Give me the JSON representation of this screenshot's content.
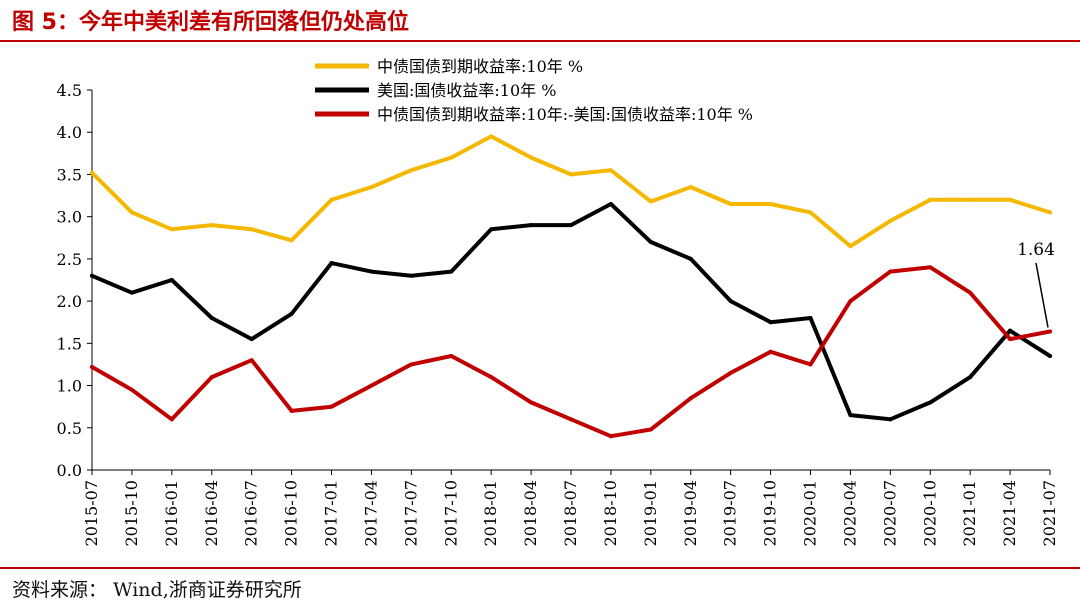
{
  "figure": {
    "title": "图 5：今年中美利差有所回落但仍处高位",
    "source": "资料来源：  Wind,浙商证券研究所"
  },
  "colors": {
    "cn": "#f5b800",
    "us": "#000000",
    "spread": "#c00000",
    "brand": "#c00000"
  },
  "chart_data": {
    "type": "line",
    "title": "",
    "xlabel": "",
    "ylabel": "",
    "ylim": [
      0,
      4.5
    ],
    "yticks": [
      "0.0",
      "0.5",
      "1.0",
      "1.5",
      "2.0",
      "2.5",
      "3.0",
      "3.5",
      "4.0",
      "4.5"
    ],
    "legend_position": "top-center",
    "categories": [
      "2015-07",
      "2015-10",
      "2016-01",
      "2016-04",
      "2016-07",
      "2016-10",
      "2017-01",
      "2017-04",
      "2017-07",
      "2017-10",
      "2018-01",
      "2018-04",
      "2018-07",
      "2018-10",
      "2019-01",
      "2019-04",
      "2019-07",
      "2019-10",
      "2020-01",
      "2020-04",
      "2020-07",
      "2020-10",
      "2021-01",
      "2021-04",
      "2021-07"
    ],
    "series": [
      {
        "name": "中债国债到期收益率:10年 %",
        "color": "#f5b800",
        "values": [
          3.52,
          3.05,
          2.85,
          2.9,
          2.85,
          2.72,
          3.2,
          3.35,
          3.55,
          3.7,
          3.95,
          3.7,
          3.5,
          3.55,
          3.18,
          3.35,
          3.15,
          3.15,
          3.05,
          2.65,
          2.95,
          3.2,
          3.2,
          3.2,
          3.05
        ]
      },
      {
        "name": "美国:国债收益率:10年 %",
        "color": "#000000",
        "values": [
          2.3,
          2.1,
          2.25,
          1.8,
          1.55,
          1.85,
          2.45,
          2.35,
          2.3,
          2.35,
          2.85,
          2.9,
          2.9,
          3.15,
          2.7,
          2.5,
          2.0,
          1.75,
          1.8,
          0.65,
          0.6,
          0.8,
          1.1,
          1.65,
          1.35
        ]
      },
      {
        "name": "中债国债到期收益率:10年:-美国:国债收益率:10年 %",
        "color": "#c00000",
        "values": [
          1.22,
          0.95,
          0.6,
          1.1,
          1.3,
          0.7,
          0.75,
          1.0,
          1.25,
          1.35,
          1.1,
          0.8,
          0.6,
          0.4,
          0.48,
          0.85,
          1.15,
          1.4,
          1.25,
          2.0,
          2.35,
          2.4,
          2.1,
          1.55,
          1.64
        ]
      }
    ],
    "annotation": {
      "label": "1.64",
      "value": 1.64
    }
  }
}
